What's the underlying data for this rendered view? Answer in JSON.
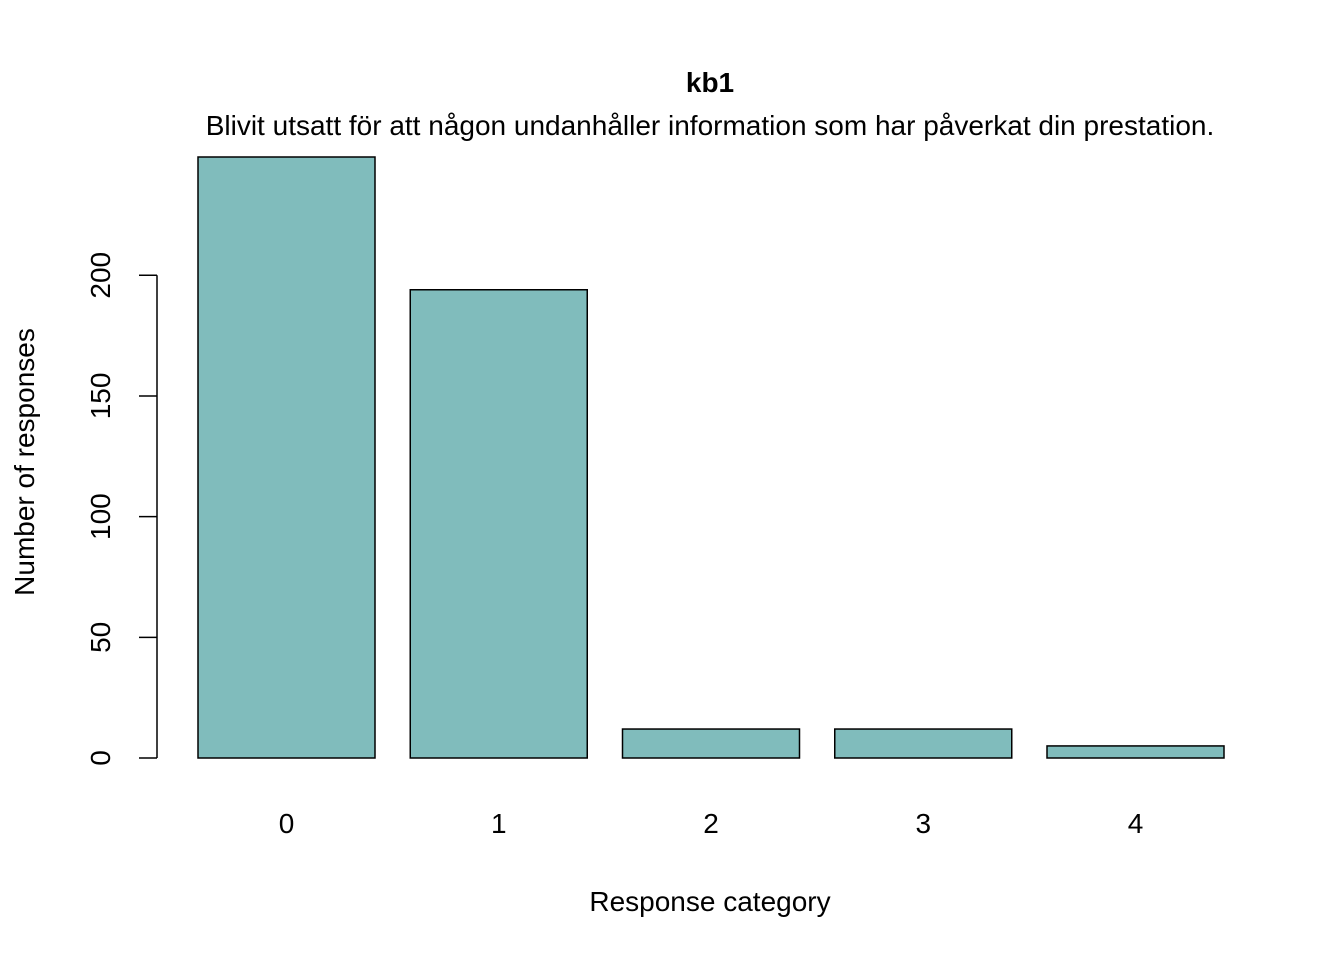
{
  "chart_data": {
    "type": "bar",
    "title": "kb1",
    "subtitle": "Blivit utsatt för att någon undanhåller information som har påverkat din prestation.",
    "xlabel": "Response category",
    "ylabel": "Number of responses",
    "categories": [
      "0",
      "1",
      "2",
      "3",
      "4"
    ],
    "values": [
      249,
      194,
      12,
      12,
      5
    ],
    "ylim": [
      0,
      249
    ],
    "yticks": [
      0,
      50,
      100,
      150,
      200
    ],
    "bar_color": "#80BCBC",
    "bar_edge_color": "#000000",
    "grid": false,
    "legend": "none"
  }
}
